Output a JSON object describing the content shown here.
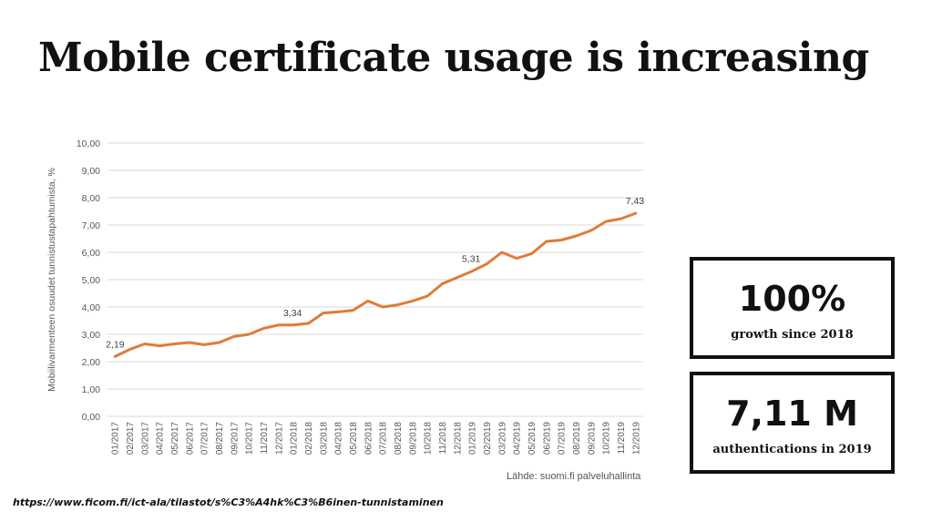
{
  "slide": {
    "title": "Mobile certificate usage is increasing",
    "url": "https://www.ficom.fi/ict-ala/tilastot/s%C3%A4hk%C3%B6inen-tunnistaminen"
  },
  "stats": [
    {
      "value": "100%",
      "label": "growth since 2018"
    },
    {
      "value": "7,11 M",
      "label": "authentications in 2019"
    }
  ],
  "chart_data": {
    "type": "line",
    "title": "",
    "ylabel": "Mobiilivarmenteen osuudet tunnistustapahtumista, %",
    "xlabel": "",
    "source": "Lähde: suomi.fi palveluhallinta",
    "ylim": [
      0,
      10
    ],
    "yticks": [
      "0,00",
      "1,00",
      "2,00",
      "3,00",
      "4,00",
      "5,00",
      "6,00",
      "7,00",
      "8,00",
      "9,00",
      "10,00"
    ],
    "grid": true,
    "line_color": "#e07b39",
    "categories": [
      "01/2017",
      "02/2017",
      "03/2017",
      "04/2017",
      "05/2017",
      "06/2017",
      "07/2017",
      "08/2017",
      "09/2017",
      "10/2017",
      "11/2017",
      "12/2017",
      "01/2018",
      "02/2018",
      "03/2018",
      "04/2018",
      "05/2018",
      "06/2018",
      "07/2018",
      "08/2018",
      "09/2018",
      "10/2018",
      "11/2018",
      "12/2018",
      "01/2019",
      "02/2019",
      "03/2019",
      "04/2019",
      "05/2019",
      "06/2019",
      "07/2019",
      "08/2019",
      "09/2019",
      "10/2019",
      "11/2019",
      "12/2019"
    ],
    "series": [
      {
        "values": [
          2.19,
          2.45,
          2.65,
          2.58,
          2.65,
          2.7,
          2.62,
          2.7,
          2.92,
          3.0,
          3.22,
          3.34,
          3.34,
          3.4,
          3.78,
          3.82,
          3.88,
          4.22,
          4.0,
          4.08,
          4.22,
          4.4,
          4.85,
          5.08,
          5.31,
          5.58,
          6.0,
          5.78,
          5.95,
          6.4,
          6.45,
          6.6,
          6.8,
          7.13,
          7.23,
          7.43
        ]
      }
    ],
    "data_labels": [
      {
        "index": 0,
        "text": "2,19"
      },
      {
        "index": 12,
        "text": "3,34"
      },
      {
        "index": 24,
        "text": "5,31"
      },
      {
        "index": 35,
        "text": "7,43"
      }
    ]
  }
}
